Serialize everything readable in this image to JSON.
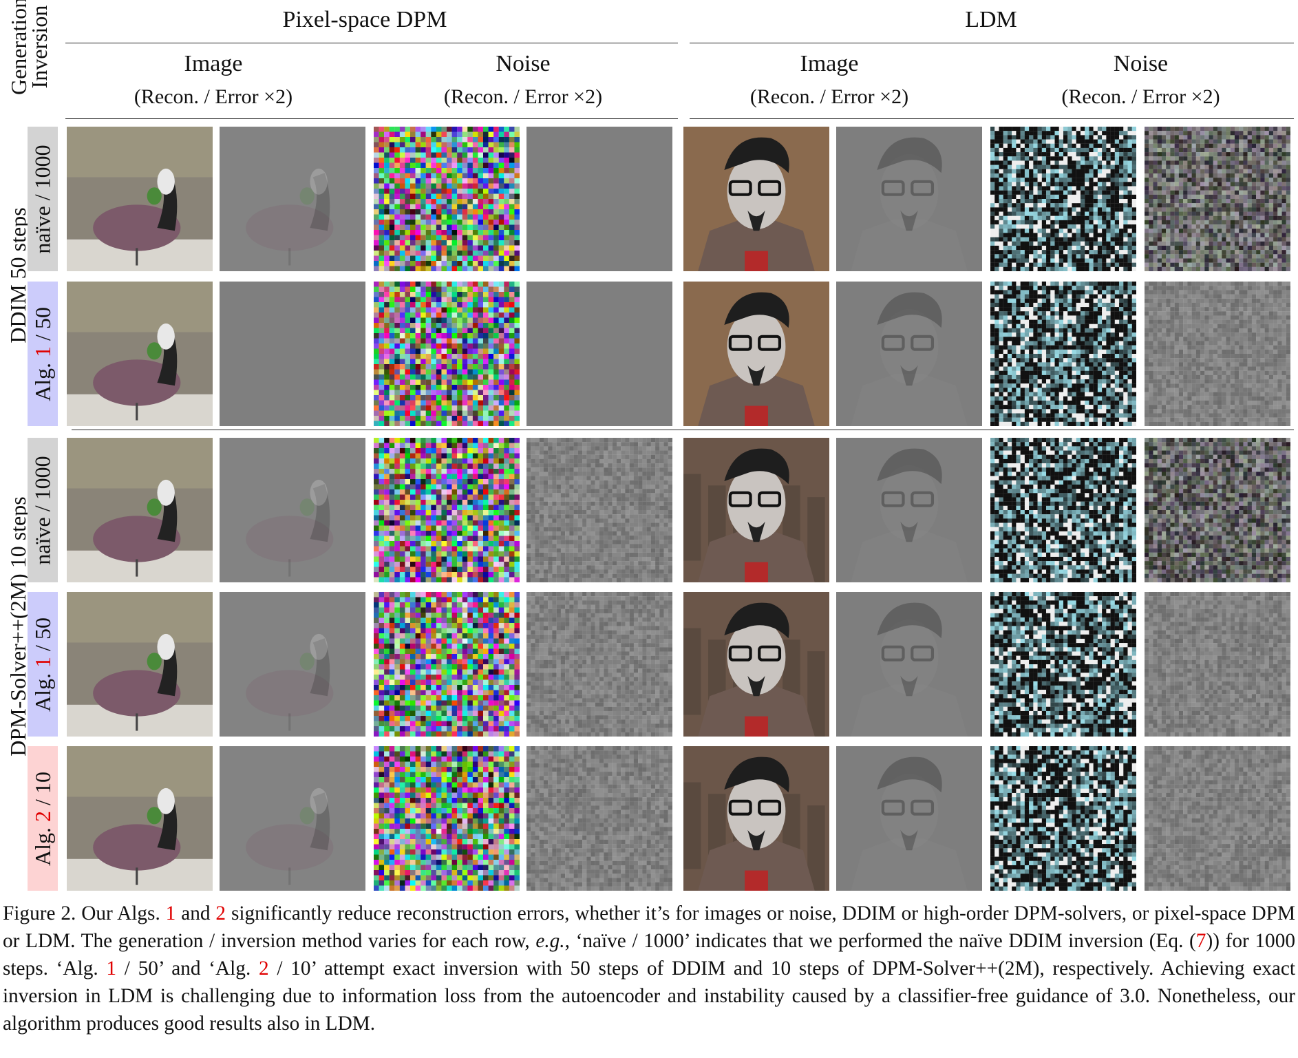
{
  "axis_header": {
    "line1": "Generation",
    "line2": "Inversion"
  },
  "groups": [
    {
      "title": "Pixel-space DPM",
      "cols": [
        {
          "title": "Image",
          "sub": "(Recon. / Error ×2)"
        },
        {
          "title": "Noise",
          "sub": "(Recon. / Error ×2)"
        }
      ]
    },
    {
      "title": "LDM",
      "cols": [
        {
          "title": "Image",
          "sub": "(Recon. / Error ×2)"
        },
        {
          "title": "Noise",
          "sub": "(Recon. / Error ×2)"
        }
      ]
    }
  ],
  "sections": [
    {
      "label": "DDIM 50 steps"
    },
    {
      "label": "DPM-Solver++(2M) 10 steps"
    }
  ],
  "rows": [
    {
      "pre": "naïve / 1000",
      "num": "",
      "post": "",
      "bg": "#d3d3d3"
    },
    {
      "pre": "Alg. ",
      "num": "1",
      "post": " / 50",
      "bg": "#ccccfb"
    },
    {
      "pre": "naïve / 1000",
      "num": "",
      "post": "",
      "bg": "#d3d3d3"
    },
    {
      "pre": "Alg. ",
      "num": "1",
      "post": " / 50",
      "bg": "#ccccfb"
    },
    {
      "pre": "Alg. ",
      "num": "2",
      "post": " / 10",
      "bg": "#fdd3d3"
    }
  ],
  "caption": {
    "p1": "Figure 2. Our Algs. ",
    "r1": "1",
    "p2": " and ",
    "r2": "2",
    "p3": " significantly reduce reconstruction errors, whether it’s for images or noise, DDIM or high-order DPM-solvers, or pixel-space DPM or LDM. The generation / inversion method varies for each row, ",
    "eg": "e.g.",
    "p4": ", ‘naïve / 1000’ indicates that we performed the naïve DDIM inversion (Eq. (",
    "r3": "7",
    "p5": ")) for 1000 steps. ‘Alg. ",
    "r4": "1",
    "p6": " / 50’ and ‘Alg. ",
    "r5": "2",
    "p7": " / 10’ attempt exact inversion with 50 steps of DDIM and 10 steps of DPM-Solver++(2M), respectively. Achieving exact inversion in LDM is challenging due to information loss from the autoencoder and instability caused by a classifier-free guidance of 3.0. Nonetheless, our algorithm produces good results also in LDM."
  }
}
